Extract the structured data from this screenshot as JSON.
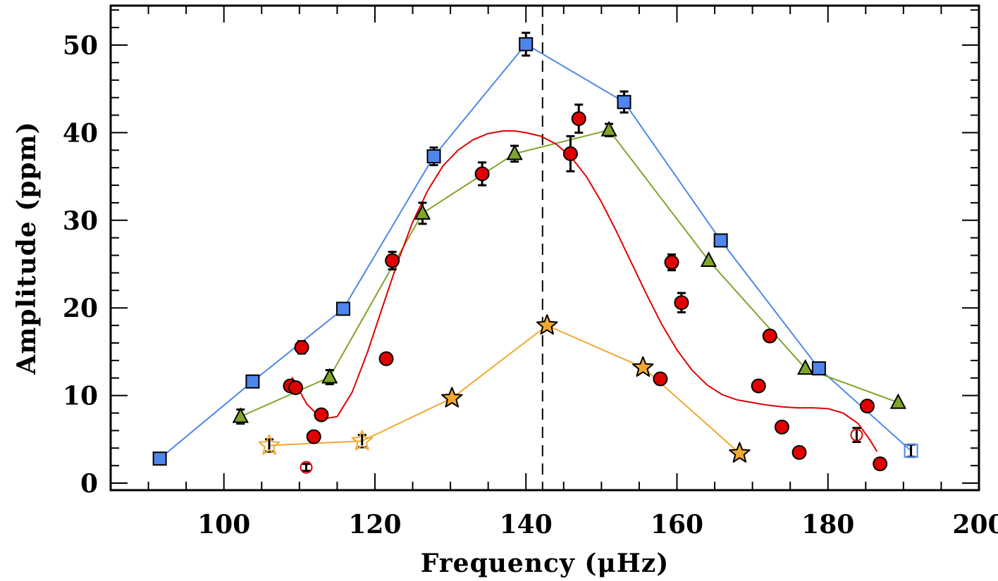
{
  "chart_data": {
    "type": "scatter",
    "title": "",
    "xlabel": "Frequency (μHz)",
    "ylabel": "Amplitude (ppm)",
    "xlim": [
      85,
      200
    ],
    "ylim": [
      -0.8,
      54.5
    ],
    "x_major_ticks": [
      100,
      120,
      140,
      160,
      180,
      200
    ],
    "x_tick_labels": [
      "100",
      "120",
      "140",
      "160",
      "180",
      "200"
    ],
    "y_major_ticks": [
      0,
      10,
      20,
      30,
      40,
      50
    ],
    "y_tick_labels": [
      "0",
      "10",
      "20",
      "30",
      "40",
      "50"
    ],
    "grid": false,
    "legend": "none",
    "vline": {
      "x": 142.2,
      "style": "dashed",
      "color": "#000000"
    },
    "series": [
      {
        "marker": "square",
        "color": "#4f86ec",
        "line": true,
        "points": [
          {
            "x": 91.5,
            "y": 2.8
          },
          {
            "x": 103.8,
            "y": 11.6
          },
          {
            "x": 115.8,
            "y": 19.9
          },
          {
            "x": 127.8,
            "y": 37.3,
            "err": 1.0
          },
          {
            "x": 140.0,
            "y": 50.1,
            "err": 1.3
          },
          {
            "x": 153.0,
            "y": 43.5,
            "err": 1.2
          },
          {
            "x": 165.8,
            "y": 27.7
          },
          {
            "x": 178.8,
            "y": 13.1
          },
          {
            "x": 191.0,
            "y": 3.7,
            "err": 0.7,
            "open": true
          }
        ]
      },
      {
        "marker": "triangle",
        "color": "#7ea52c",
        "line": true,
        "points": [
          {
            "x": 102.2,
            "y": 7.6,
            "err": 0.8
          },
          {
            "x": 114.0,
            "y": 12.1,
            "err": 0.8
          },
          {
            "x": 126.3,
            "y": 30.8,
            "err": 1.2
          },
          {
            "x": 138.5,
            "y": 37.6,
            "err": 0.9
          },
          {
            "x": 151.0,
            "y": 40.3,
            "err": 0.7
          },
          {
            "x": 164.2,
            "y": 25.4
          },
          {
            "x": 177.0,
            "y": 13.1
          },
          {
            "x": 189.3,
            "y": 9.2
          }
        ]
      },
      {
        "marker": "circle",
        "color": "#e00000",
        "line": false,
        "points": [
          {
            "x": 108.8,
            "y": 11.1
          },
          {
            "x": 109.5,
            "y": 10.9
          },
          {
            "x": 110.3,
            "y": 15.5,
            "err": 0.7
          },
          {
            "x": 110.9,
            "y": 1.8,
            "err": 0.4,
            "open": true
          },
          {
            "x": 111.9,
            "y": 5.3
          },
          {
            "x": 112.9,
            "y": 7.8
          },
          {
            "x": 121.5,
            "y": 14.2
          },
          {
            "x": 122.3,
            "y": 25.4,
            "err": 1.0
          },
          {
            "x": 134.2,
            "y": 35.3,
            "err": 1.3
          },
          {
            "x": 145.9,
            "y": 37.6,
            "err": 2.0
          },
          {
            "x": 147.0,
            "y": 41.6,
            "err": 1.6
          },
          {
            "x": 157.8,
            "y": 11.9
          },
          {
            "x": 159.3,
            "y": 25.2,
            "err": 0.9
          },
          {
            "x": 160.6,
            "y": 20.6,
            "err": 1.1
          },
          {
            "x": 170.8,
            "y": 11.1
          },
          {
            "x": 172.3,
            "y": 16.8
          },
          {
            "x": 173.9,
            "y": 6.4
          },
          {
            "x": 176.2,
            "y": 3.5
          },
          {
            "x": 183.8,
            "y": 5.5,
            "err": 0.8,
            "open": true
          },
          {
            "x": 185.2,
            "y": 8.8
          },
          {
            "x": 186.9,
            "y": 2.2
          }
        ]
      },
      {
        "marker": "star",
        "color": "#f0a830",
        "line": true,
        "points": [
          {
            "x": 106.0,
            "y": 4.3,
            "err": 0.7,
            "open": true
          },
          {
            "x": 118.3,
            "y": 4.8,
            "err": 0.7,
            "open": true
          },
          {
            "x": 130.2,
            "y": 9.7
          },
          {
            "x": 142.8,
            "y": 18.0
          },
          {
            "x": 155.5,
            "y": 13.2
          },
          {
            "x": 168.3,
            "y": 3.4
          }
        ]
      }
    ],
    "fit_curve": {
      "color": "#e00000",
      "x": [
        109.0,
        111.0,
        113.0,
        115.0,
        117.0,
        119.0,
        121.0,
        123.0,
        125.0,
        127.0,
        129.0,
        131.0,
        133.0,
        135.0,
        137.0,
        138.5,
        140.0,
        142.0,
        144.0,
        146.0,
        148.0,
        150.0,
        152.0,
        154.0,
        156.0,
        158.0,
        160.0,
        162.0,
        164.0,
        166.0,
        168.0,
        170.0,
        172.0,
        174.0,
        176.0,
        178.0,
        180.0,
        182.0,
        184.0,
        185.5,
        186.5
      ],
      "y": [
        12.1,
        9.0,
        7.3,
        7.6,
        10.4,
        14.9,
        20.1,
        25.2,
        29.8,
        33.4,
        36.2,
        38.0,
        39.2,
        39.9,
        40.2,
        40.2,
        40.0,
        39.6,
        38.7,
        37.2,
        35.0,
        32.1,
        28.7,
        25.1,
        21.5,
        18.1,
        15.2,
        12.9,
        11.2,
        10.1,
        9.5,
        9.2,
        8.9,
        8.7,
        8.6,
        8.6,
        8.5,
        8.0,
        6.8,
        5.0,
        3.6
      ]
    }
  }
}
